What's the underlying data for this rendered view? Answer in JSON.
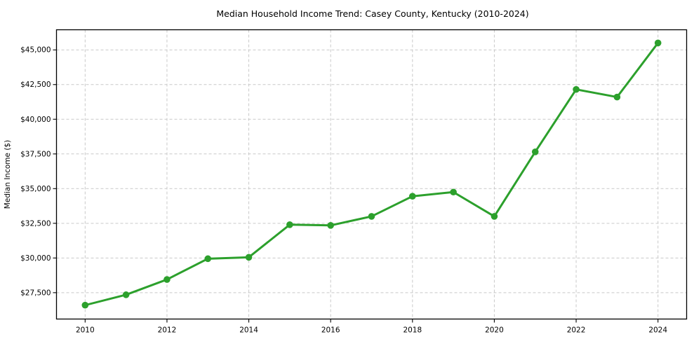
{
  "chart_data": {
    "type": "line",
    "title": "Median Household Income Trend: Casey County, Kentucky (2010-2024)",
    "xlabel": "",
    "ylabel": "Median Income ($)",
    "x": [
      2010,
      2011,
      2012,
      2013,
      2014,
      2015,
      2016,
      2017,
      2018,
      2019,
      2020,
      2021,
      2022,
      2023,
      2024
    ],
    "values": [
      26600,
      27350,
      28450,
      29950,
      30050,
      32400,
      32350,
      33000,
      34450,
      34750,
      33000,
      37650,
      42150,
      41600,
      45500
    ],
    "xlim": [
      2009.3,
      2024.7
    ],
    "ylim": [
      25600,
      46450
    ],
    "xticks": [
      {
        "value": 2010,
        "label": "2010"
      },
      {
        "value": 2012,
        "label": "2012"
      },
      {
        "value": 2014,
        "label": "2014"
      },
      {
        "value": 2016,
        "label": "2016"
      },
      {
        "value": 2018,
        "label": "2018"
      },
      {
        "value": 2020,
        "label": "2020"
      },
      {
        "value": 2022,
        "label": "2022"
      },
      {
        "value": 2024,
        "label": "2024"
      }
    ],
    "yticks": [
      {
        "value": 27500,
        "label": "$27,500"
      },
      {
        "value": 30000,
        "label": "$30,000"
      },
      {
        "value": 32500,
        "label": "$32,500"
      },
      {
        "value": 35000,
        "label": "$35,000"
      },
      {
        "value": 37500,
        "label": "$37,500"
      },
      {
        "value": 40000,
        "label": "$40,000"
      },
      {
        "value": 42500,
        "label": "$42,500"
      },
      {
        "value": 45000,
        "label": "$45,000"
      }
    ],
    "grid": true,
    "grid_style": "dashed",
    "legend": "none",
    "colors": {
      "line": "#2ca02c",
      "marker": "#2ca02c",
      "grid": "#c9c9c9",
      "axis": "#000000",
      "text": "#000000",
      "background": "#ffffff"
    }
  }
}
